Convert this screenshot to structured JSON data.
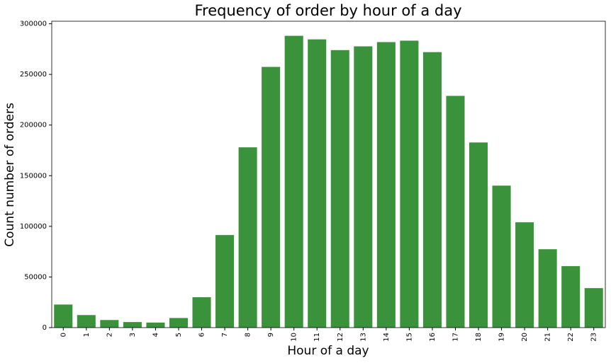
{
  "chart_data": {
    "type": "bar",
    "title": "Frequency of order by hour of a day",
    "x_label": "Hour of a day",
    "y_label": "Count number of orders",
    "categories": [
      "0",
      "1",
      "2",
      "3",
      "4",
      "5",
      "6",
      "7",
      "8",
      "9",
      "10",
      "11",
      "12",
      "13",
      "14",
      "15",
      "16",
      "17",
      "18",
      "19",
      "20",
      "21",
      "22",
      "23"
    ],
    "values": [
      22800,
      12400,
      7500,
      5500,
      5000,
      9500,
      30000,
      91400,
      178000,
      257400,
      288100,
      284600,
      274000,
      277700,
      281900,
      283300,
      272000,
      228800,
      182800,
      140200,
      104000,
      77400,
      60700,
      39000
    ],
    "color": "#3a923a",
    "ylim": [
      0,
      302500
    ],
    "yticks": [
      0,
      50000,
      100000,
      150000,
      200000,
      250000,
      300000
    ],
    "grid": false
  }
}
